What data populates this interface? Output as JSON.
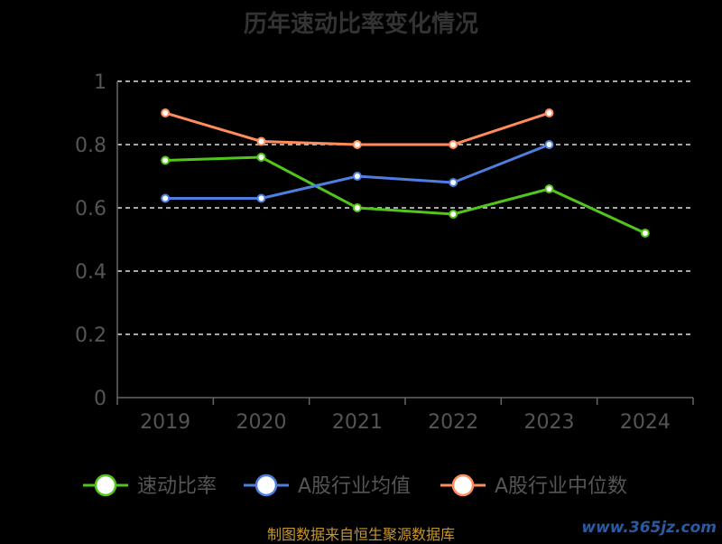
{
  "chart_data": {
    "type": "line",
    "title": "历年速动比率变化情况",
    "categories": [
      "2019",
      "2020",
      "2021",
      "2022",
      "2023",
      "2024"
    ],
    "ylim": [
      0,
      1
    ],
    "yticks": [
      "0",
      "0.2",
      "0.4",
      "0.6",
      "0.8",
      "1"
    ],
    "ytick_values": [
      0,
      0.2,
      0.4,
      0.6,
      0.8,
      1
    ],
    "grid": true,
    "legend_position": "bottom",
    "series": [
      {
        "name": "速动比率",
        "color": "#52c41a",
        "values": [
          0.75,
          0.76,
          0.6,
          0.58,
          0.66,
          0.52
        ]
      },
      {
        "name": "A股行业均值",
        "color": "#4e7fe0",
        "values": [
          0.63,
          0.63,
          0.7,
          0.68,
          0.8,
          null
        ]
      },
      {
        "name": "A股行业中位数",
        "color": "#ff8c5a",
        "values": [
          0.9,
          0.81,
          0.8,
          0.8,
          0.9,
          null
        ]
      }
    ]
  },
  "footer": {
    "source": "制图数据来自恒生聚源数据库",
    "watermark": "www.365jz.com"
  }
}
